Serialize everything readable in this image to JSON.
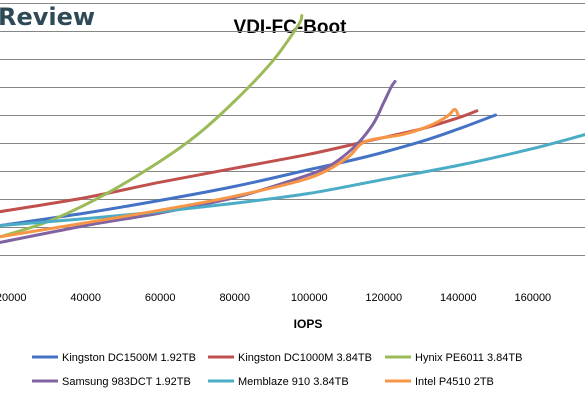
{
  "brand": {
    "text": "Review",
    "color": "#2f4a57"
  },
  "chart_data": {
    "type": "line",
    "title": "VDI-FC-Boot",
    "xlabel": "IOPS",
    "ylabel": "",
    "x_ticks": [
      "20000",
      "40000",
      "60000",
      "80000",
      "100000",
      "120000",
      "140000",
      "160000"
    ],
    "xlim": [
      17000,
      174000
    ],
    "ylim": [
      0,
      10
    ],
    "y_gridlines": [
      1,
      2,
      3,
      4,
      5,
      6,
      7,
      8,
      9,
      10
    ],
    "grid": "horizontal",
    "legend_position": "bottom",
    "series": [
      {
        "name": "Kingston DC1500M 1.92TB",
        "color": "#4472c4",
        "x": [
          17000,
          40000,
          60000,
          80000,
          100000,
          115000,
          130000,
          140000,
          150000
        ],
        "y": [
          2.05,
          2.5,
          2.95,
          3.45,
          4.05,
          4.5,
          5.05,
          5.5,
          6.0
        ]
      },
      {
        "name": "Kingston DC1000M 3.84TB",
        "color": "#c0504d",
        "x": [
          17000,
          40000,
          60000,
          80000,
          100000,
          115000,
          130000,
          140000,
          145000
        ],
        "y": [
          2.55,
          3.05,
          3.6,
          4.1,
          4.6,
          5.05,
          5.5,
          5.9,
          6.15
        ]
      },
      {
        "name": "Hynix PE6011 3.84TB",
        "color": "#9bbb59",
        "x": [
          17000,
          30000,
          45000,
          60000,
          70000,
          80000,
          90000,
          97000,
          98000
        ],
        "y": [
          1.65,
          2.2,
          3.15,
          4.35,
          5.3,
          6.5,
          7.9,
          9.2,
          9.55
        ]
      },
      {
        "name": "Samsung 983DCT 1.92TB",
        "color": "#8064a2",
        "x": [
          17000,
          40000,
          60000,
          80000,
          95000,
          105000,
          112000,
          117000,
          120000,
          122000,
          123000
        ],
        "y": [
          1.45,
          2.05,
          2.5,
          3.05,
          3.65,
          4.15,
          4.85,
          5.65,
          6.45,
          7.0,
          7.2
        ]
      },
      {
        "name": "Memblaze 910 3.84TB",
        "color": "#4bacc6",
        "x": [
          17000,
          40000,
          60000,
          80000,
          100000,
          120000,
          140000,
          160000,
          174000
        ],
        "y": [
          2.05,
          2.3,
          2.55,
          2.85,
          3.2,
          3.7,
          4.2,
          4.8,
          5.3
        ]
      },
      {
        "name": "Intel P4510 2TB",
        "color": "#f79646",
        "x": [
          17000,
          40000,
          60000,
          80000,
          100000,
          110000,
          115000,
          125000,
          132000,
          137000,
          139000,
          140000
        ],
        "y": [
          1.65,
          2.15,
          2.6,
          3.1,
          3.75,
          4.45,
          5.05,
          5.3,
          5.6,
          5.95,
          6.2,
          6.0
        ]
      }
    ]
  }
}
